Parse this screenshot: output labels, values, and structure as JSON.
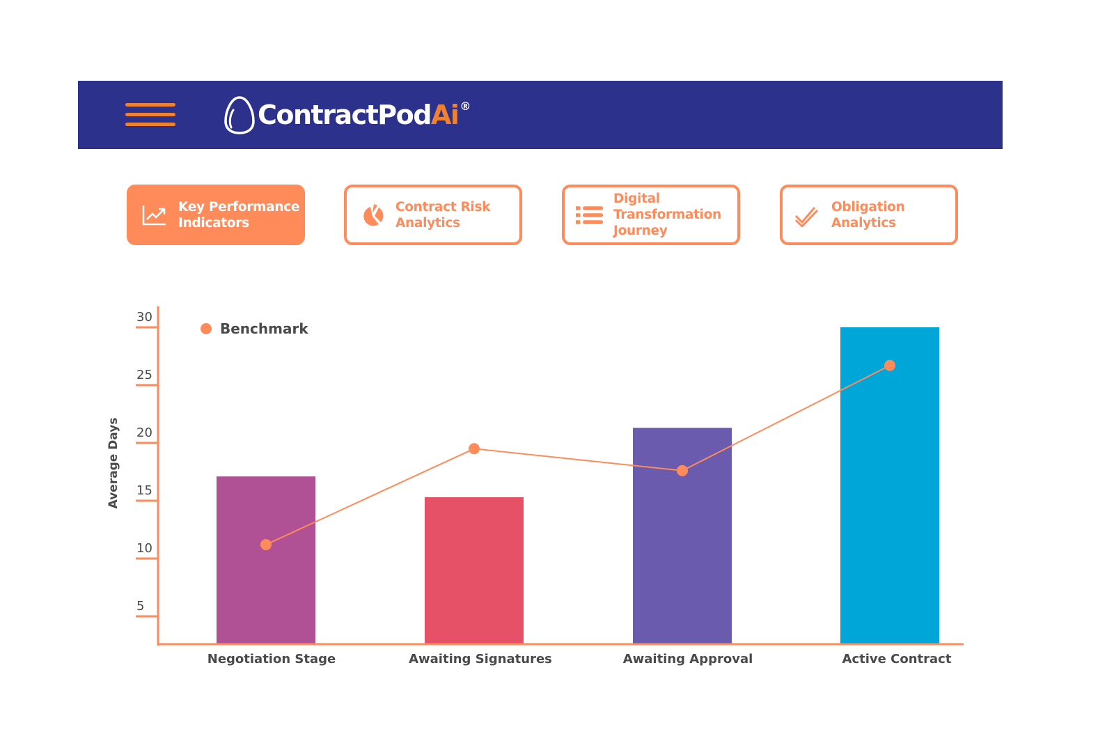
{
  "header": {
    "menu_icon": "hamburger-menu-icon",
    "logo": {
      "text_main": "ContractPod",
      "text_accent": "Ai",
      "registered": "®",
      "mark_icon": "egg-logo-icon"
    },
    "colors": {
      "background": "#2C318C",
      "accent": "#F0812F"
    }
  },
  "tabs": [
    {
      "label_line1": "Key Performance",
      "label_line2": "Indicators",
      "label_line3": "",
      "icon": "trend-chart-icon",
      "active": true
    },
    {
      "label_line1": "Contract Risk",
      "label_line2": "Analytics",
      "label_line3": "",
      "icon": "pie-chart-icon",
      "active": false
    },
    {
      "label_line1": "Digital",
      "label_line2": "Transformation",
      "label_line3": "Journey",
      "icon": "list-icon",
      "active": false
    },
    {
      "label_line1": "Obligation",
      "label_line2": "Analytics",
      "label_line3": "",
      "icon": "double-check-icon",
      "active": false
    }
  ],
  "colors": {
    "accent": "#FF8B5A",
    "text": "#4A4A4A"
  },
  "chart_data": {
    "type": "bar",
    "title": "",
    "xlabel": "",
    "ylabel": "Average Days",
    "categories": [
      "Negotiation Stage",
      "Awaiting Signatures",
      "Awaiting Approval",
      "Active Contract"
    ],
    "series": [
      {
        "name": "Average Days",
        "type": "bar",
        "values": [
          17.1,
          15.3,
          21.3,
          30
        ],
        "colors": [
          "#B05095",
          "#E75168",
          "#6B5BAF",
          "#00A6D8"
        ]
      },
      {
        "name": "Benchmark",
        "type": "line",
        "values": [
          11.2,
          19.5,
          17.6,
          26.7
        ],
        "color": "#FF8B5A"
      }
    ],
    "yticks": [
      5,
      10,
      15,
      20,
      25,
      30
    ],
    "ylim": [
      2.7,
      31
    ],
    "grid": false,
    "legend": {
      "entries": [
        "Benchmark"
      ],
      "position": "top-left"
    }
  }
}
